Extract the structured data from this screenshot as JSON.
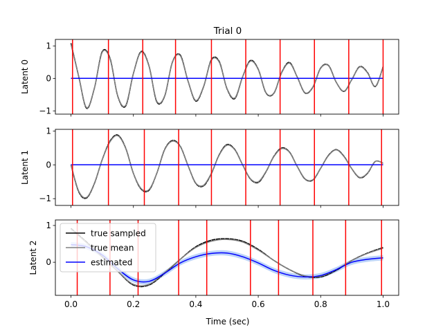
{
  "title": "Trial 0",
  "xlabel": "Time (sec)",
  "chart_data": [
    {
      "type": "line",
      "ylabel": "Latent 0",
      "xlim": [
        -0.05,
        1.05
      ],
      "ylim": [
        -1.1,
        1.2
      ],
      "xticks": [
        0.0,
        0.2,
        0.4,
        0.6,
        0.8,
        1.0
      ],
      "xtick_labels_visible": false,
      "yticks": [
        -1,
        0,
        1
      ],
      "ytick_labels": [
        "−1",
        "0",
        "1"
      ],
      "event_lines": [
        0.005,
        0.12,
        0.23,
        0.335,
        0.45,
        0.56,
        0.67,
        0.78,
        0.89,
        1.0
      ],
      "series": [
        {
          "role": "true_sampled",
          "color": "#000000",
          "x": [
            0.0,
            0.025,
            0.05,
            0.075,
            0.1,
            0.125,
            0.15,
            0.175,
            0.2,
            0.225,
            0.25,
            0.275,
            0.3,
            0.325,
            0.35,
            0.375,
            0.4,
            0.425,
            0.45,
            0.475,
            0.5,
            0.525,
            0.55,
            0.575,
            0.6,
            0.625,
            0.65,
            0.675,
            0.7,
            0.725,
            0.75,
            0.775,
            0.8,
            0.825,
            0.85,
            0.875,
            0.9,
            0.925,
            0.95,
            0.975,
            1.0
          ],
          "y": [
            1.08,
            0.05,
            -0.92,
            -0.3,
            0.82,
            0.62,
            -0.55,
            -0.85,
            0.15,
            0.83,
            0.38,
            -0.72,
            -0.55,
            0.5,
            0.72,
            -0.08,
            -0.7,
            -0.25,
            0.58,
            0.52,
            -0.32,
            -0.62,
            0.05,
            0.55,
            0.28,
            -0.45,
            -0.46,
            0.18,
            0.49,
            0.04,
            -0.45,
            -0.27,
            0.32,
            0.4,
            -0.12,
            -0.4,
            -0.03,
            0.36,
            0.18,
            -0.25,
            0.36
          ]
        },
        {
          "role": "true_mean",
          "color": "#808080",
          "x": [
            0.0,
            0.025,
            0.05,
            0.075,
            0.1,
            0.125,
            0.15,
            0.175,
            0.2,
            0.225,
            0.25,
            0.275,
            0.3,
            0.325,
            0.35,
            0.375,
            0.4,
            0.425,
            0.45,
            0.475,
            0.5,
            0.525,
            0.55,
            0.575,
            0.6,
            0.625,
            0.65,
            0.675,
            0.7,
            0.725,
            0.75,
            0.775,
            0.8,
            0.825,
            0.85,
            0.875,
            0.9,
            0.925,
            0.95,
            0.975,
            1.0
          ],
          "y": [
            1.05,
            0.05,
            -0.9,
            -0.3,
            0.8,
            0.6,
            -0.54,
            -0.83,
            0.15,
            0.81,
            0.37,
            -0.7,
            -0.54,
            0.49,
            0.7,
            -0.08,
            -0.68,
            -0.24,
            0.56,
            0.5,
            -0.31,
            -0.6,
            0.05,
            0.53,
            0.27,
            -0.44,
            -0.45,
            0.17,
            0.47,
            0.04,
            -0.44,
            -0.26,
            0.31,
            0.39,
            -0.12,
            -0.39,
            -0.03,
            0.35,
            0.17,
            -0.24,
            0.35
          ]
        },
        {
          "role": "estimated",
          "color": "#0000ff",
          "x": [
            0.0,
            0.05,
            0.1,
            0.15,
            0.2,
            0.25,
            0.3,
            0.35,
            0.4,
            0.45,
            0.5,
            0.55,
            0.6,
            0.65,
            0.7,
            0.75,
            0.8,
            0.85,
            0.9,
            0.95,
            1.0
          ],
          "y": [
            0,
            0,
            0,
            0,
            0,
            0,
            0,
            0,
            0,
            0,
            0,
            0,
            0,
            0,
            0,
            0,
            0,
            0,
            0,
            0,
            0
          ]
        }
      ]
    },
    {
      "type": "line",
      "ylabel": "Latent 1",
      "xlim": [
        -0.05,
        1.05
      ],
      "ylim": [
        -1.2,
        1.05
      ],
      "xticks": [
        0.0,
        0.2,
        0.4,
        0.6,
        0.8,
        1.0
      ],
      "xtick_labels_visible": false,
      "yticks": [
        -1,
        0,
        1
      ],
      "ytick_labels": [
        "−1",
        "0",
        "1"
      ],
      "event_lines": [
        0.005,
        0.12,
        0.235,
        0.345,
        0.45,
        0.56,
        0.67,
        0.78,
        0.89,
        0.995
      ],
      "series": [
        {
          "role": "true_sampled",
          "color": "#000000",
          "x": [
            0.0,
            0.025,
            0.05,
            0.075,
            0.1,
            0.125,
            0.15,
            0.175,
            0.2,
            0.225,
            0.25,
            0.275,
            0.3,
            0.325,
            0.35,
            0.375,
            0.4,
            0.425,
            0.45,
            0.475,
            0.5,
            0.525,
            0.55,
            0.575,
            0.6,
            0.625,
            0.65,
            0.675,
            0.7,
            0.725,
            0.75,
            0.775,
            0.8,
            0.825,
            0.85,
            0.875,
            0.9,
            0.925,
            0.95,
            0.975,
            1.0
          ],
          "y": [
            0.0,
            -0.8,
            -0.98,
            -0.55,
            0.15,
            0.7,
            0.88,
            0.5,
            -0.25,
            -0.72,
            -0.75,
            -0.25,
            0.45,
            0.72,
            0.55,
            -0.02,
            -0.55,
            -0.62,
            -0.25,
            0.3,
            0.6,
            0.45,
            0.0,
            -0.42,
            -0.52,
            -0.2,
            0.25,
            0.5,
            0.38,
            -0.05,
            -0.42,
            -0.45,
            -0.1,
            0.28,
            0.45,
            0.25,
            -0.12,
            -0.38,
            -0.25,
            0.1,
            0.05
          ]
        },
        {
          "role": "true_mean",
          "color": "#808080",
          "x": [
            0.0,
            0.025,
            0.05,
            0.075,
            0.1,
            0.125,
            0.15,
            0.175,
            0.2,
            0.225,
            0.25,
            0.275,
            0.3,
            0.325,
            0.35,
            0.375,
            0.4,
            0.425,
            0.45,
            0.475,
            0.5,
            0.525,
            0.55,
            0.575,
            0.6,
            0.625,
            0.65,
            0.675,
            0.7,
            0.725,
            0.75,
            0.775,
            0.8,
            0.825,
            0.85,
            0.875,
            0.9,
            0.925,
            0.95,
            0.975,
            1.0
          ],
          "y": [
            0.0,
            -0.78,
            -0.96,
            -0.54,
            0.15,
            0.68,
            0.86,
            0.49,
            -0.25,
            -0.7,
            -0.73,
            -0.25,
            0.44,
            0.7,
            0.54,
            -0.02,
            -0.54,
            -0.6,
            -0.24,
            0.29,
            0.58,
            0.44,
            0.0,
            -0.41,
            -0.5,
            -0.19,
            0.24,
            0.48,
            0.37,
            -0.05,
            -0.41,
            -0.44,
            -0.1,
            0.27,
            0.44,
            0.24,
            -0.12,
            -0.37,
            -0.24,
            0.1,
            0.05
          ]
        },
        {
          "role": "estimated",
          "color": "#0000ff",
          "x": [
            0.0,
            0.05,
            0.1,
            0.15,
            0.2,
            0.25,
            0.3,
            0.35,
            0.4,
            0.45,
            0.5,
            0.55,
            0.6,
            0.65,
            0.7,
            0.75,
            0.8,
            0.85,
            0.9,
            0.95,
            1.0
          ],
          "y": [
            0,
            0,
            0,
            0,
            0,
            0,
            0,
            0,
            0,
            0,
            0,
            0,
            0,
            0,
            0,
            0,
            0,
            0,
            0,
            0,
            0
          ]
        }
      ]
    },
    {
      "type": "line",
      "ylabel": "Latent 2",
      "xlim": [
        -0.05,
        1.05
      ],
      "ylim": [
        -0.9,
        1.15
      ],
      "xticks": [
        0.0,
        0.2,
        0.4,
        0.6,
        0.8,
        1.0
      ],
      "xtick_labels": [
        "0.0",
        "0.2",
        "0.4",
        "0.6",
        "0.8",
        "1.0"
      ],
      "xtick_labels_visible": true,
      "yticks": [
        0,
        1
      ],
      "ytick_labels": [
        "0",
        "1"
      ],
      "event_lines": [
        0.02,
        0.125,
        0.215,
        0.345,
        0.435,
        0.575,
        0.665,
        0.775,
        0.88,
        0.995
      ],
      "legend": {
        "placement": "top-left",
        "entries": [
          {
            "label": "true sampled",
            "color": "#000000"
          },
          {
            "label": "true mean",
            "color": "#808080"
          },
          {
            "label": "estimated",
            "color": "#0000ff"
          }
        ]
      },
      "series": [
        {
          "role": "true_sampled",
          "color": "#000000",
          "x": [
            0.0,
            0.05,
            0.1,
            0.15,
            0.2,
            0.25,
            0.3,
            0.35,
            0.4,
            0.45,
            0.5,
            0.55,
            0.6,
            0.65,
            0.7,
            0.75,
            0.8,
            0.85,
            0.9,
            0.95,
            1.0
          ],
          "y": [
            0.92,
            0.55,
            0.15,
            -0.25,
            -0.62,
            -0.62,
            -0.3,
            0.08,
            0.42,
            0.6,
            0.64,
            0.57,
            0.35,
            0.05,
            -0.2,
            -0.38,
            -0.4,
            -0.22,
            0.05,
            0.25,
            0.4
          ]
        },
        {
          "role": "true_mean",
          "color": "#808080",
          "x": [
            0.0,
            0.05,
            0.1,
            0.15,
            0.2,
            0.25,
            0.3,
            0.35,
            0.4,
            0.45,
            0.5,
            0.55,
            0.6,
            0.65,
            0.7,
            0.75,
            0.8,
            0.85,
            0.9,
            0.95,
            1.0
          ],
          "y": [
            0.9,
            0.53,
            0.14,
            -0.25,
            -0.6,
            -0.6,
            -0.28,
            0.08,
            0.4,
            0.57,
            0.62,
            0.55,
            0.33,
            0.05,
            -0.2,
            -0.37,
            -0.38,
            -0.2,
            0.05,
            0.24,
            0.38
          ]
        },
        {
          "role": "estimated",
          "color": "#0000ff",
          "band_color": "#a6c4f5",
          "band_halfwidth": 0.07,
          "x": [
            0.0,
            0.05,
            0.1,
            0.15,
            0.2,
            0.25,
            0.3,
            0.35,
            0.4,
            0.45,
            0.5,
            0.55,
            0.6,
            0.65,
            0.7,
            0.75,
            0.8,
            0.85,
            0.9,
            0.95,
            1.0
          ],
          "y": [
            0.48,
            0.42,
            0.2,
            -0.18,
            -0.48,
            -0.52,
            -0.3,
            -0.02,
            0.15,
            0.24,
            0.25,
            0.15,
            -0.02,
            -0.22,
            -0.35,
            -0.4,
            -0.36,
            -0.2,
            0.0,
            0.08,
            0.12
          ]
        }
      ]
    }
  ]
}
